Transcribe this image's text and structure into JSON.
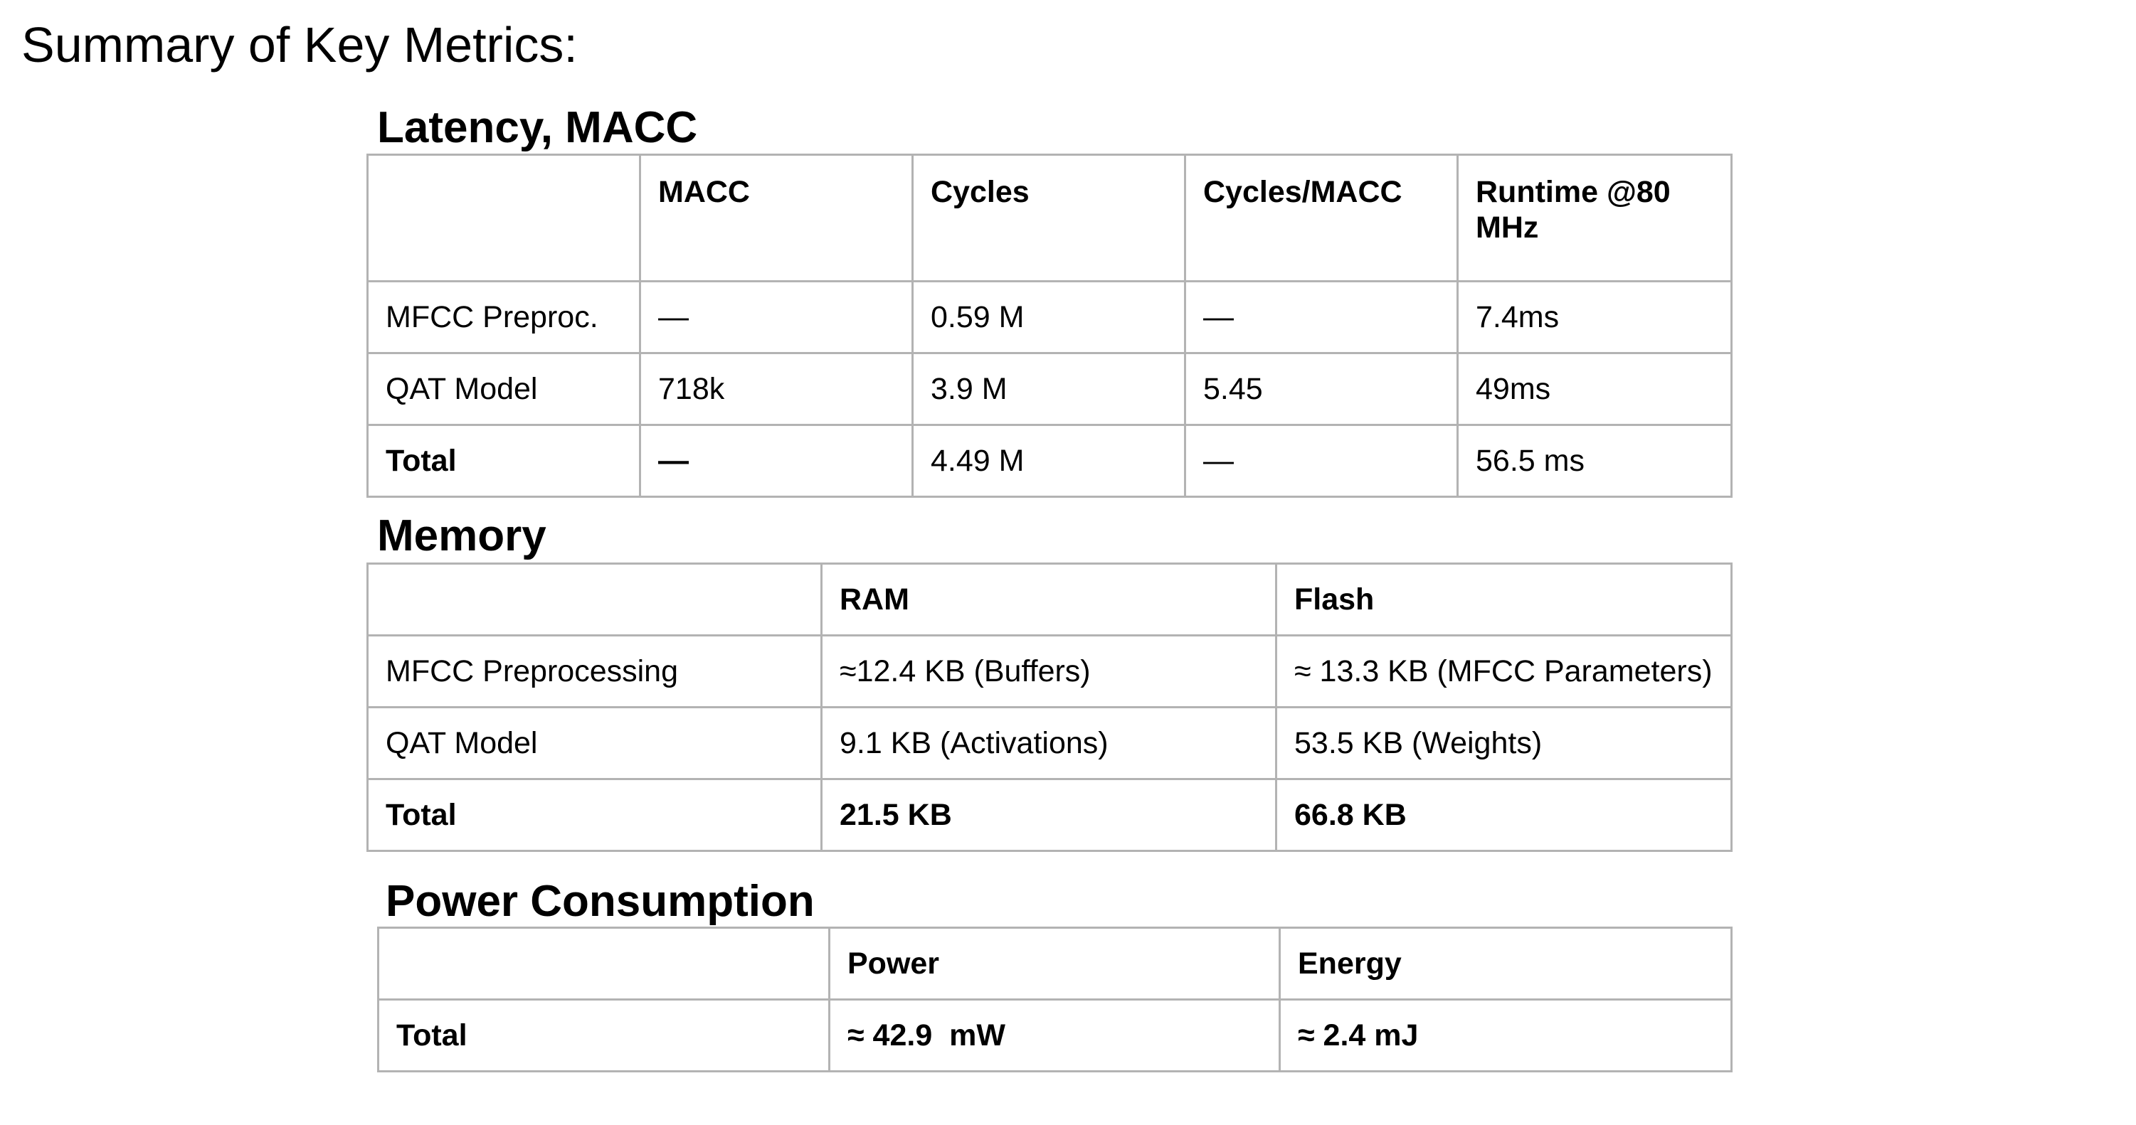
{
  "page": {
    "title": "Summary of Key Metrics:"
  },
  "latency": {
    "title": "Latency, MACC",
    "headers": [
      "",
      "MACC",
      "Cycles",
      "Cycles/MACC",
      "Runtime @80 MHz"
    ],
    "rows": [
      [
        "MFCC Preproc.",
        "—",
        "0.59 M",
        "—",
        "7.4ms"
      ],
      [
        "QAT Model",
        "718k",
        "3.9 M",
        "5.45",
        "49ms"
      ],
      [
        "Total",
        "—",
        "4.49 M",
        "—",
        "56.5 ms"
      ]
    ]
  },
  "memory": {
    "title": "Memory",
    "headers": [
      "",
      "RAM",
      "Flash"
    ],
    "rows": [
      [
        "MFCC Preprocessing",
        "≈12.4 KB (Buffers)",
        "≈ 13.3 KB (MFCC Parameters)"
      ],
      [
        "QAT Model",
        "9.1 KB (Activations)",
        "53.5 KB (Weights)"
      ],
      [
        "Total",
        "21.5 KB",
        "66.8 KB"
      ]
    ]
  },
  "power": {
    "title": "Power Consumption",
    "headers": [
      "",
      "Power",
      "Energy"
    ],
    "rows": [
      [
        "Total",
        "≈ 42.9  mW",
        "≈ 2.4 mJ"
      ]
    ]
  }
}
